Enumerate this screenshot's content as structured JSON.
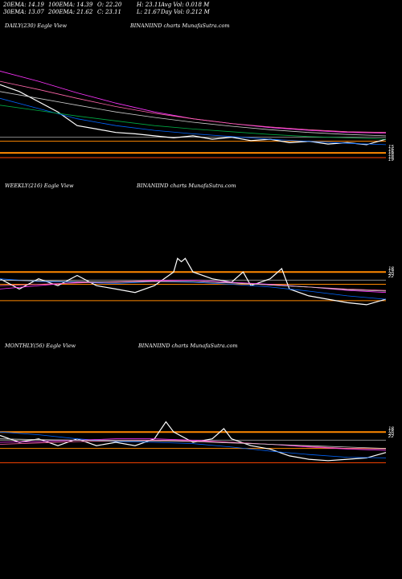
{
  "header": {
    "row1": [
      "20EMA: 14.19",
      "100EMA: 14.39",
      "O: 22.20",
      "H: 23.11",
      "Avg Vol: 0.018  M"
    ],
    "row2": [
      "30EMA: 13.07",
      "200EMA: 21.62",
      "C: 23.11",
      "L: 21.67",
      "Day Vol: 0.212  M"
    ]
  },
  "panels": [
    {
      "title": "DAILY(230) Eagle   View",
      "brand": "BINANIIND charts MunafaSutra.com"
    },
    {
      "title": "WEEKLY(216) Eagle   View",
      "brand": "BINANIIND charts MunafaSutra.com"
    },
    {
      "title": "MONTHLY(56) Eagle   View",
      "brand": "BINANIIND charts MunafaSutra.com"
    }
  ],
  "chart_data": [
    {
      "type": "line",
      "xlim": [
        0,
        100
      ],
      "ylim": [
        9,
        30
      ],
      "right_labels": [
        "15",
        "16",
        "16",
        "18",
        "18",
        "19"
      ],
      "hlines": [
        {
          "y": 13.0,
          "color": "#ff8800"
        },
        {
          "y": 14.7,
          "color": "#ff8800"
        },
        {
          "y": 15.3,
          "color": "#888888"
        },
        {
          "y": 12.3,
          "color": "#ff4400"
        }
      ],
      "series": [
        {
          "color": "#ffffff",
          "x": [
            0,
            5,
            10,
            15,
            20,
            25,
            30,
            35,
            40,
            45,
            50,
            55,
            60,
            65,
            70,
            75,
            80,
            85,
            90,
            95,
            100
          ],
          "y": [
            23,
            22,
            20.5,
            19,
            17,
            16.5,
            16,
            15.8,
            15.5,
            15.2,
            15.5,
            15,
            15.3,
            14.8,
            15,
            14.5,
            14.7,
            14.3,
            14.5,
            14.2,
            15
          ]
        },
        {
          "color": "#0066ff",
          "x": [
            0,
            10,
            20,
            30,
            40,
            50,
            60,
            70,
            80,
            90,
            100
          ],
          "y": [
            21,
            19.5,
            18,
            17,
            16.3,
            15.8,
            15.4,
            15,
            14.7,
            14.4,
            14.2
          ]
        },
        {
          "color": "#ff33ff",
          "x": [
            0,
            10,
            20,
            30,
            40,
            50,
            60,
            70,
            80,
            90,
            100
          ],
          "y": [
            25,
            23.5,
            21.8,
            20.3,
            19,
            18,
            17.3,
            16.7,
            16.3,
            16,
            15.9
          ]
        },
        {
          "color": "#ff66aa",
          "x": [
            0,
            10,
            20,
            30,
            40,
            50,
            60,
            70,
            80,
            90,
            100
          ],
          "y": [
            23.5,
            22.3,
            21,
            19.8,
            18.8,
            18,
            17.3,
            16.8,
            16.4,
            16.1,
            16
          ]
        },
        {
          "color": "#cccccc",
          "x": [
            0,
            10,
            20,
            30,
            40,
            50,
            60,
            70,
            80,
            90,
            100
          ],
          "y": [
            22,
            21,
            20,
            19,
            18.2,
            17.5,
            16.9,
            16.4,
            16,
            15.7,
            15.5
          ]
        },
        {
          "color": "#00aa44",
          "x": [
            0,
            10,
            20,
            30,
            40,
            50,
            60,
            70,
            80,
            90,
            100
          ],
          "y": [
            20,
            19.2,
            18.4,
            17.7,
            17,
            16.5,
            16.1,
            15.7,
            15.4,
            15.2,
            15
          ]
        }
      ]
    },
    {
      "type": "line",
      "xlim": [
        0,
        100
      ],
      "ylim": [
        9,
        30
      ],
      "right_labels": [
        "18",
        "19",
        "20",
        "22"
      ],
      "hlines": [
        {
          "y": 19.0,
          "color": "#ff8800"
        },
        {
          "y": 17.2,
          "color": "#ff8800"
        },
        {
          "y": 14.8,
          "color": "#ff8800"
        },
        {
          "y": 17.8,
          "color": "#888888"
        }
      ],
      "series": [
        {
          "color": "#ffffff",
          "x": [
            0,
            5,
            10,
            15,
            20,
            25,
            30,
            35,
            40,
            45,
            46,
            47,
            48,
            50,
            55,
            60,
            63,
            65,
            70,
            73,
            75,
            80,
            85,
            90,
            95,
            100
          ],
          "y": [
            18,
            16.5,
            18,
            17,
            18.5,
            17,
            16.5,
            16,
            17,
            19,
            21,
            20.5,
            21,
            19,
            18,
            17.5,
            19,
            17,
            18,
            19.5,
            16.5,
            15.5,
            15,
            14.5,
            14.2,
            15
          ]
        },
        {
          "color": "#0066ff",
          "x": [
            0,
            10,
            20,
            30,
            40,
            50,
            60,
            70,
            80,
            90,
            100
          ],
          "y": [
            18,
            17.6,
            17.5,
            17.3,
            17.6,
            17.5,
            17.2,
            16.8,
            16.2,
            15.5,
            15
          ]
        },
        {
          "color": "#ff33ff",
          "x": [
            0,
            10,
            20,
            30,
            40,
            50,
            60,
            70,
            80,
            90,
            100
          ],
          "y": [
            16.5,
            17,
            17.5,
            17.5,
            17.8,
            17.8,
            17.5,
            17.2,
            16.8,
            16.3,
            16
          ]
        },
        {
          "color": "#ff66aa",
          "x": [
            0,
            10,
            20,
            30,
            40,
            50,
            60,
            70,
            80,
            90,
            100
          ],
          "y": [
            17,
            17.2,
            17.4,
            17.6,
            17.7,
            17.6,
            17.4,
            17.1,
            16.8,
            16.5,
            16.3
          ]
        },
        {
          "color": "#cccccc",
          "x": [
            0,
            10,
            20,
            30,
            40,
            50,
            60,
            70,
            80,
            90,
            100
          ],
          "y": [
            17.8,
            17.7,
            17.6,
            17.5,
            17.6,
            17.6,
            17.4,
            17.1,
            16.8,
            16.4,
            16.2
          ]
        }
      ]
    },
    {
      "type": "line",
      "xlim": [
        0,
        100
      ],
      "ylim": [
        9,
        30
      ],
      "right_labels": [
        "18",
        "18",
        "20",
        "22"
      ],
      "hlines": [
        {
          "y": 19.0,
          "color": "#ff8800"
        },
        {
          "y": 16.6,
          "color": "#ff8800"
        },
        {
          "y": 14.5,
          "color": "#ff4400"
        },
        {
          "y": 17.8,
          "color": "#888888"
        }
      ],
      "series": [
        {
          "color": "#ffffff",
          "x": [
            0,
            5,
            10,
            15,
            20,
            25,
            30,
            35,
            40,
            43,
            45,
            50,
            55,
            58,
            60,
            65,
            70,
            75,
            80,
            85,
            90,
            95,
            100
          ],
          "y": [
            18.5,
            17.5,
            18,
            17,
            18,
            17,
            17.5,
            17,
            18,
            20.5,
            19,
            17.5,
            18,
            19.5,
            18,
            17,
            16.5,
            15.5,
            15,
            14.8,
            15,
            15.2,
            16
          ]
        },
        {
          "color": "#0066ff",
          "x": [
            0,
            10,
            20,
            30,
            40,
            50,
            60,
            70,
            80,
            90,
            100
          ],
          "y": [
            19,
            18.6,
            18,
            17.6,
            17.5,
            17.3,
            16.8,
            16.2,
            15.7,
            15.3,
            15.2
          ]
        },
        {
          "color": "#ff33ff",
          "x": [
            0,
            10,
            20,
            30,
            40,
            50,
            60,
            70,
            80,
            90,
            100
          ],
          "y": [
            17.5,
            17.6,
            17.8,
            18,
            18,
            17.8,
            17.5,
            17.2,
            16.8,
            16.5,
            16.3
          ]
        },
        {
          "color": "#ff66aa",
          "x": [
            0,
            10,
            20,
            30,
            40,
            50,
            60,
            70,
            80,
            90,
            100
          ],
          "y": [
            17.2,
            17.4,
            17.6,
            17.7,
            17.8,
            17.7,
            17.5,
            17.2,
            16.9,
            16.6,
            16.5
          ]
        },
        {
          "color": "#cccccc",
          "x": [
            0,
            10,
            20,
            30,
            40,
            50,
            60,
            70,
            80,
            90,
            100
          ],
          "y": [
            18,
            17.9,
            17.8,
            17.7,
            17.7,
            17.6,
            17.4,
            17.2,
            17,
            16.8,
            16.6
          ]
        }
      ]
    }
  ]
}
